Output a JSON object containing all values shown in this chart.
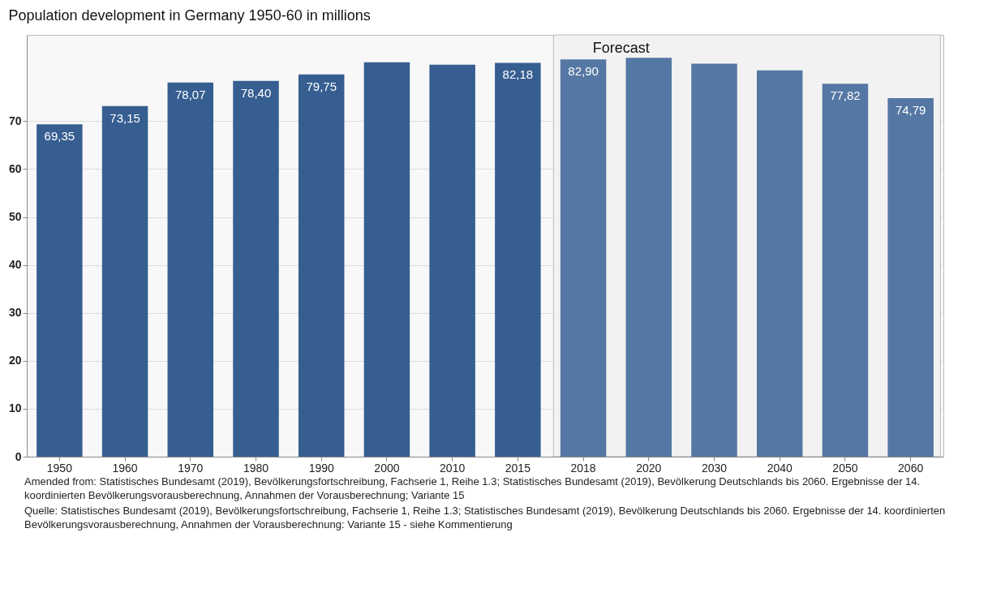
{
  "chart_data": {
    "type": "bar",
    "title": "Population development in Germany 1950-60 in millions",
    "categories": [
      "1950",
      "1960",
      "1970",
      "1980",
      "1990",
      "2000",
      "2010",
      "2015",
      "2018",
      "2020",
      "2030",
      "2040",
      "2050",
      "2060"
    ],
    "values": [
      69.35,
      73.15,
      78.07,
      78.4,
      79.75,
      82.3,
      81.8,
      82.18,
      82.9,
      83.2,
      82.0,
      80.6,
      77.82,
      74.79
    ],
    "value_labels": [
      "69,35",
      "73,15",
      "78,07",
      "78,40",
      "79,75",
      null,
      null,
      "82,18",
      "82,90",
      null,
      null,
      null,
      "77,82",
      "74,79"
    ],
    "colors": [
      "#365e91",
      "#365e91",
      "#365e91",
      "#365e91",
      "#365e91",
      "#365e91",
      "#365e91",
      "#365e91",
      "#5577a3",
      "#5577a3",
      "#5577a3",
      "#5577a3",
      "#5577a3",
      "#5577a3"
    ],
    "ylim": [
      0,
      88
    ],
    "yticks": [
      0,
      10,
      20,
      30,
      40,
      50,
      60,
      70
    ],
    "grid": "y",
    "bands": [
      {
        "axis": "x",
        "from": "2018",
        "to": "2060",
        "label": "Forecast",
        "color": "#f2f2f2"
      }
    ],
    "annotations": [
      "Amended from: Statistisches Bundesamt (2019), Bevölkerungsfortschreibung, Fachserie 1, Reihe 1.3; Statistisches Bundesamt (2019), Bevölkerung Deutschlands bis 2060. Ergebnisse der 14. koordinierten Bevölkerungsvorausberechnung, Annahmen der Vorausberechnung; Variante 15",
      "Quelle: Statistisches Bundesamt (2019), Bevölkerungsfortschreibung, Fachserie 1, Reihe 1.3; Statistisches Bundesamt (2019), Bevölkerung Deutschlands bis 2060. Ergebnisse der 14. koordinierten Bevölkerungsvorausberechnung, Annahmen der Vorausberechnung: Variante 15 - siehe Kommentierung"
    ]
  }
}
